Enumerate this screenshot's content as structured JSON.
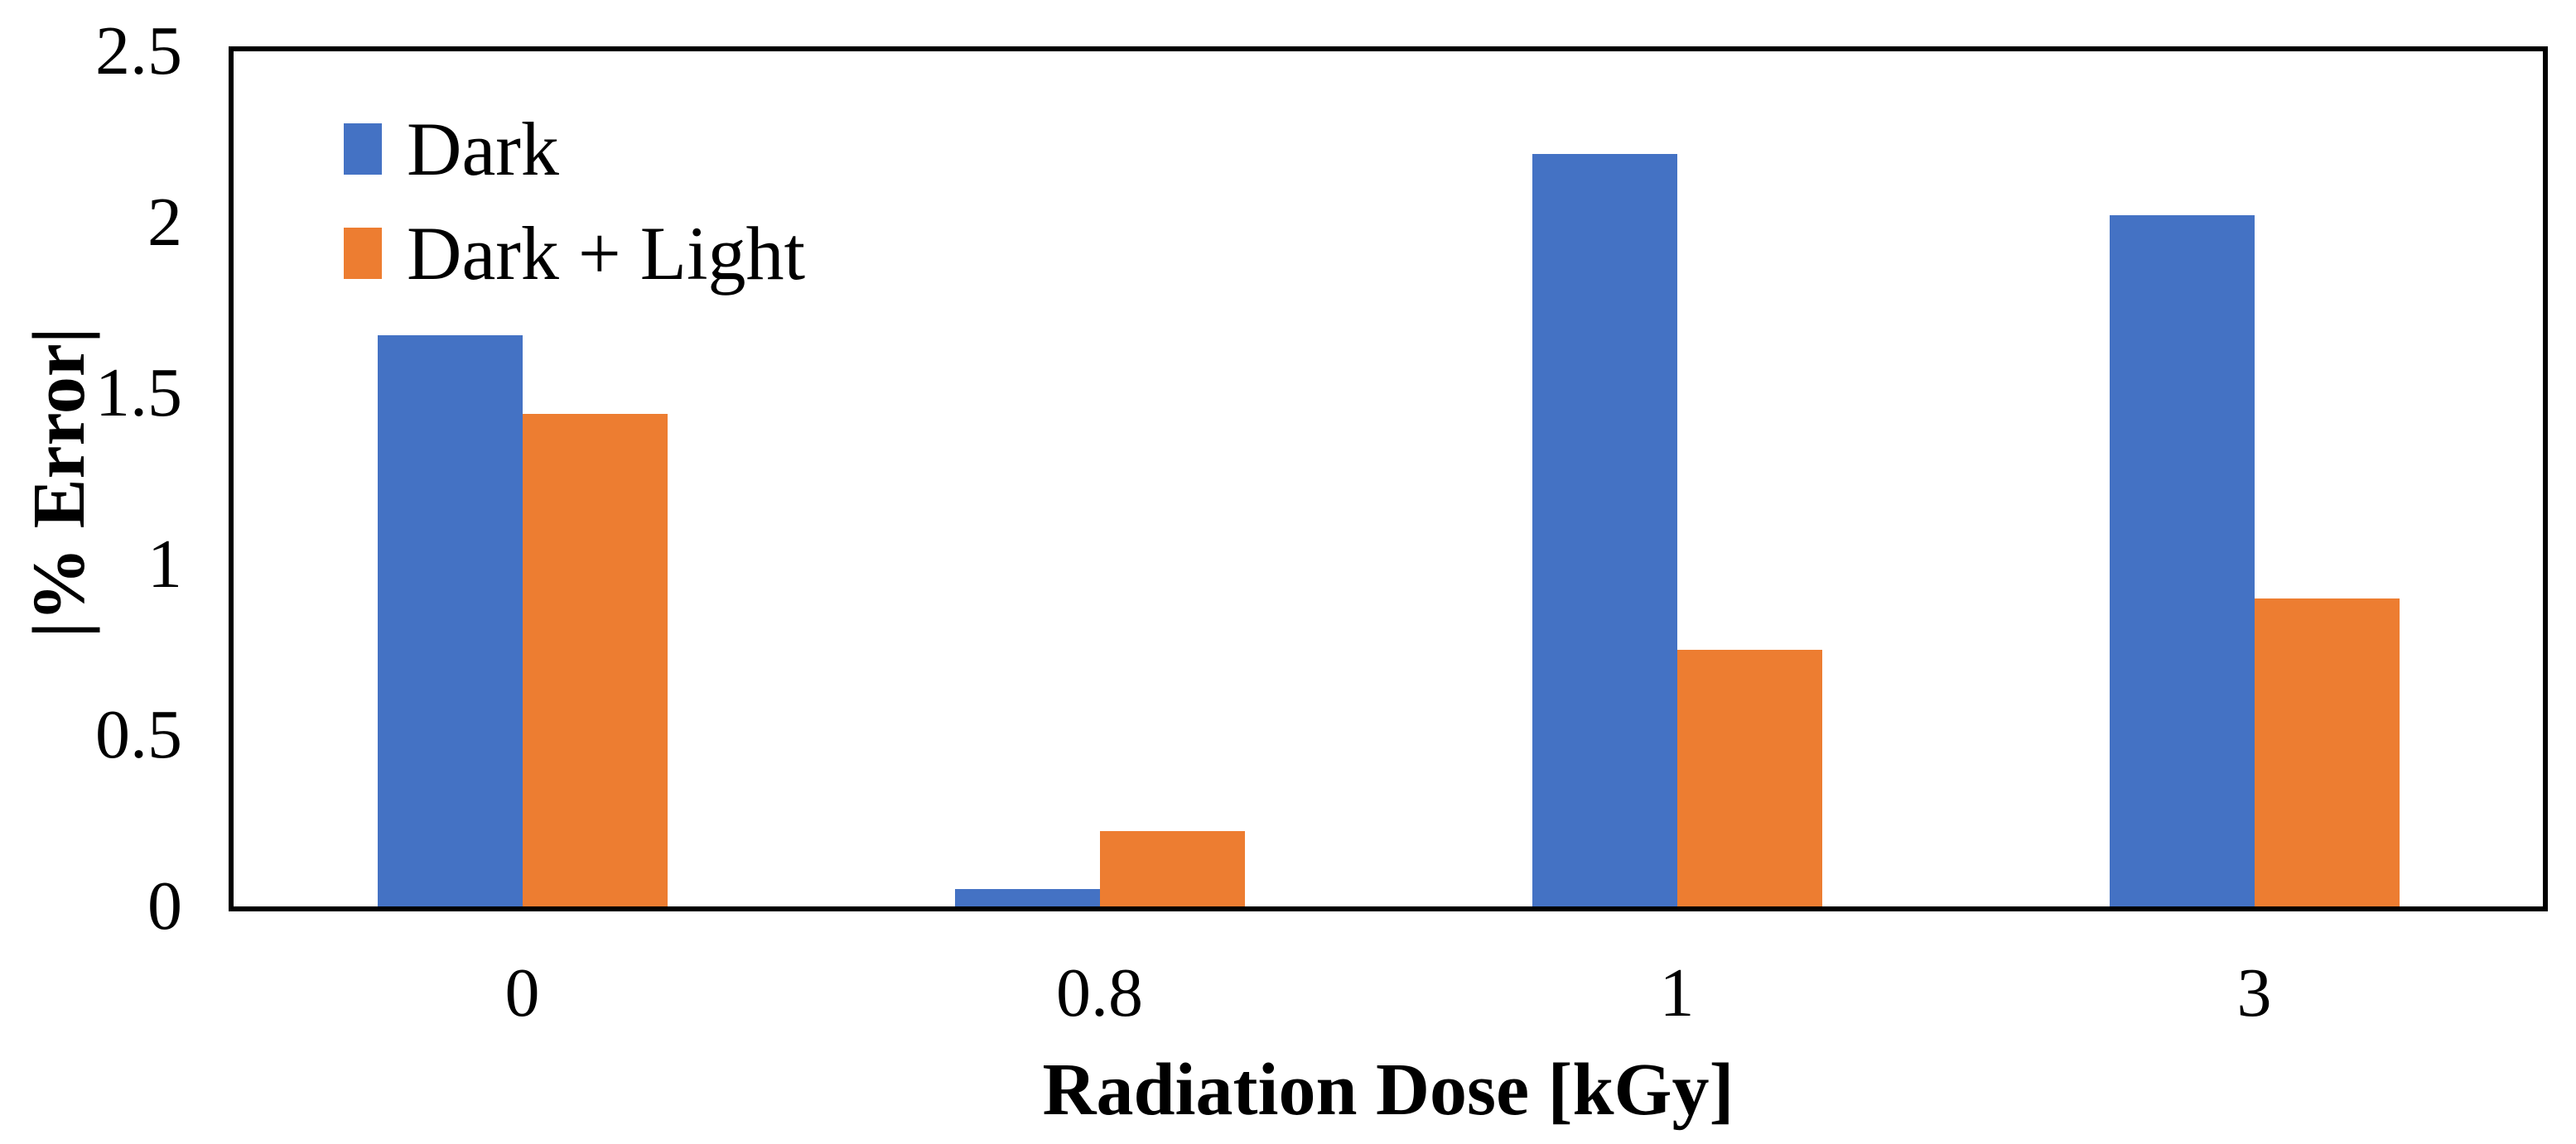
{
  "chart_data": {
    "type": "bar",
    "title": "",
    "categories": [
      "0",
      "0.8",
      "1",
      "3"
    ],
    "series": [
      {
        "name": "Dark",
        "color": "#4472C4",
        "values": [
          1.67,
          0.05,
          2.2,
          2.02
        ]
      },
      {
        "name": "Dark + Light",
        "color": "#ED7D31",
        "values": [
          1.44,
          0.22,
          0.75,
          0.9
        ]
      }
    ],
    "xlabel": "Radiation Dose [kGy]",
    "ylabel": "|% Error|",
    "ylim": [
      0,
      2.5
    ],
    "yticks": [
      "0",
      "0.5",
      "1",
      "1.5",
      "2",
      "2.5"
    ],
    "grid": false,
    "legend_position": "top-left-inside",
    "plot_border_color": "#000000",
    "background_color": "#ffffff",
    "text_color": "#000000"
  }
}
